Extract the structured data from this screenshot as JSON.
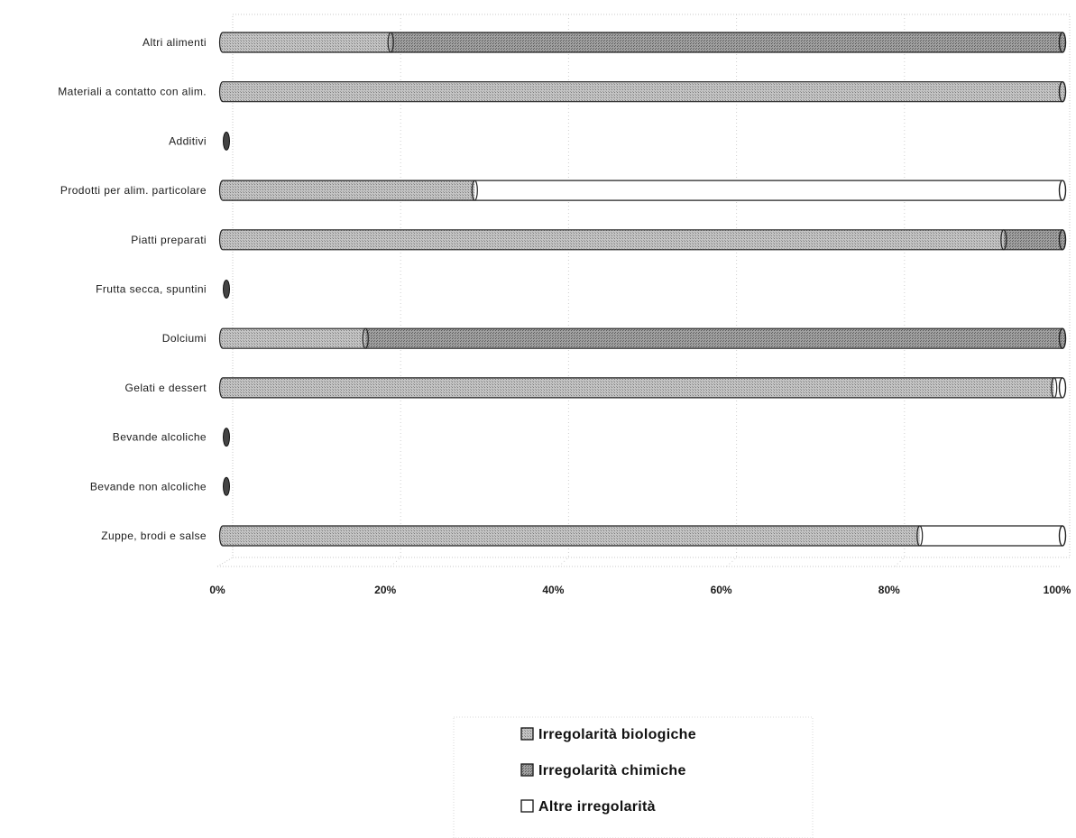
{
  "chart_data": {
    "type": "bar",
    "orientation": "horizontal",
    "stacked": "percent",
    "categories": [
      "Altri alimenti",
      "Materiali a contatto con alim.",
      "Additivi",
      "Prodotti per alim. particolare",
      "Piatti preparati",
      "Frutta secca, spuntini",
      "Dolciumi",
      "Gelati e dessert",
      "Bevande alcoliche",
      "Bevande non alcoliche",
      "Zuppe, brodi e salse"
    ],
    "series": [
      {
        "name": "Irregolarità biologiche",
        "color": "#b4b4b4",
        "values": [
          20,
          100,
          0,
          30,
          93,
          0,
          17,
          99,
          0,
          0,
          83
        ]
      },
      {
        "name": "Irregolarità chimiche",
        "color": "#8e8e8e",
        "values": [
          80,
          0,
          0,
          0,
          7,
          0,
          83,
          0,
          0,
          0,
          0
        ]
      },
      {
        "name": "Altre irregolarità",
        "color": "#ffffff",
        "values": [
          0,
          0,
          0,
          70,
          0,
          0,
          0,
          1,
          0,
          0,
          17
        ]
      }
    ],
    "x_ticks": [
      "0%",
      "20%",
      "40%",
      "60%",
      "80%",
      "100%"
    ],
    "xlim": [
      0,
      100
    ],
    "grid": true,
    "legend_position": "bottom-center",
    "title": "",
    "xlabel": "",
    "ylabel": ""
  }
}
